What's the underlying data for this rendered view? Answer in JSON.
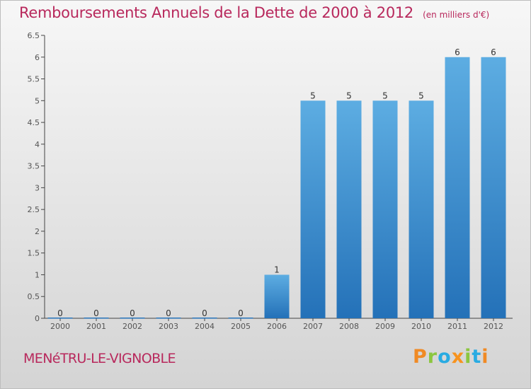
{
  "title": "Remboursements Annuels de la Dette de 2000 à 2012",
  "subtitle": "(en milliers d'€)",
  "commune": "MENéTRU-LE-VIGNOBLE",
  "logo": {
    "text": "Proxiti",
    "letters": [
      {
        "char": "P",
        "color": "#f08a24"
      },
      {
        "char": "r",
        "color": "#8cc63f"
      },
      {
        "char": "o",
        "color": "#29abe2"
      },
      {
        "char": "x",
        "color": "#f7931e"
      },
      {
        "char": "i",
        "color": "#8cc63f"
      },
      {
        "char": "t",
        "color": "#29abe2"
      },
      {
        "char": "i",
        "color": "#f08a24"
      }
    ]
  },
  "colors": {
    "title": "#b8285c",
    "bar_light": "#5dade2",
    "bar_dark": "#2471b8",
    "axis": "#444444"
  },
  "chart_data": {
    "type": "bar",
    "title": "Remboursements Annuels de la Dette de 2000 à 2012",
    "subtitle": "(en milliers d'€)",
    "categories": [
      "2000",
      "2001",
      "2002",
      "2003",
      "2004",
      "2005",
      "2006",
      "2007",
      "2008",
      "2009",
      "2010",
      "2011",
      "2012"
    ],
    "values": [
      0,
      0,
      0,
      0,
      0,
      0,
      1,
      5,
      5,
      5,
      5,
      6,
      6
    ],
    "data_labels": [
      "0",
      "0",
      "0",
      "0",
      "0",
      "0",
      "1",
      "5",
      "5",
      "5",
      "5",
      "6",
      "6"
    ],
    "ylim": [
      0,
      6.5
    ],
    "yticks": [
      0,
      0.5,
      1,
      1.5,
      2,
      2.5,
      3,
      3.5,
      4,
      4.5,
      5,
      5.5,
      6,
      6.5
    ],
    "ytick_labels": [
      "0",
      "0.5",
      "1",
      "1.5",
      "2",
      "2.5",
      "3",
      "3.5",
      "4",
      "4.5",
      "5",
      "5.5",
      "6",
      "6.5"
    ],
    "xlabel": "",
    "ylabel": "",
    "grid": false
  }
}
